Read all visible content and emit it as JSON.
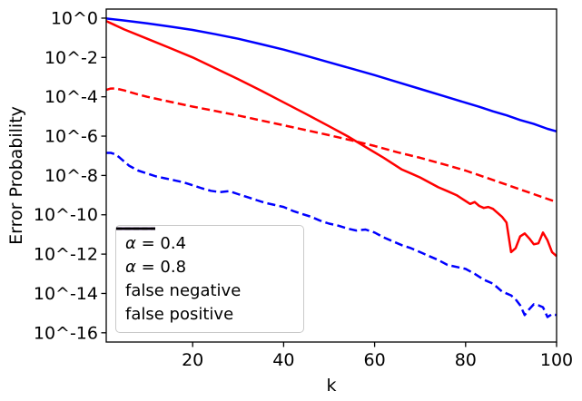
{
  "chart_data": {
    "type": "line",
    "title": "",
    "xlabel": "k",
    "ylabel": "Error Probability",
    "grid": false,
    "xlim": [
      1,
      100
    ],
    "ylim_log10": [
      -16.47,
      0.46
    ],
    "x_ticks": [
      20,
      40,
      60,
      80,
      100
    ],
    "y_ticks": [
      {
        "value": 0,
        "label": "10^0"
      },
      {
        "value": -2,
        "label": "10^-2"
      },
      {
        "value": -4,
        "label": "10^-4"
      },
      {
        "value": -6,
        "label": "10^-6"
      },
      {
        "value": -8,
        "label": "10^-8"
      },
      {
        "value": -10,
        "label": "10^-10"
      },
      {
        "value": -12,
        "label": "10^-12"
      },
      {
        "value": -14,
        "label": "10^-14"
      },
      {
        "value": -16,
        "label": "10^-16"
      }
    ],
    "colors": {
      "alpha04": "#ff0000",
      "alpha08": "#0000ff",
      "neutral": "#000000"
    },
    "legend": {
      "position": "lower left",
      "entries": [
        {
          "label": "α = 0.4",
          "color": "#ff0000",
          "dash": "solid"
        },
        {
          "label": "α = 0.8",
          "color": "#0000ff",
          "dash": "solid"
        },
        {
          "label": "false negative",
          "color": "#000000",
          "dash": "solid"
        },
        {
          "label": "false positive",
          "color": "#000000",
          "dash": "dashed"
        }
      ]
    },
    "series": [
      {
        "id": "alpha04-false-negative",
        "name": "α = 0.4 false negative",
        "color": "#ff0000",
        "style": "solid",
        "x": [
          1,
          5,
          10,
          15,
          20,
          25,
          30,
          35,
          40,
          45,
          50,
          54,
          58,
          62,
          66,
          68,
          70,
          72,
          74,
          76,
          78,
          80,
          81,
          82,
          83,
          84,
          85,
          86,
          87,
          88,
          89,
          90,
          91,
          92,
          93,
          94,
          95,
          96,
          97,
          98,
          99,
          100
        ],
        "log10_y": [
          -0.15,
          -0.58,
          -1.05,
          -1.52,
          -2.0,
          -2.55,
          -3.1,
          -3.68,
          -4.28,
          -4.88,
          -5.5,
          -6.0,
          -6.55,
          -7.1,
          -7.7,
          -7.9,
          -8.1,
          -8.35,
          -8.6,
          -8.8,
          -9.0,
          -9.3,
          -9.45,
          -9.35,
          -9.55,
          -9.65,
          -9.6,
          -9.7,
          -9.9,
          -10.1,
          -10.4,
          -11.9,
          -11.7,
          -11.1,
          -10.95,
          -11.2,
          -11.5,
          -11.45,
          -10.9,
          -11.3,
          -11.9,
          -12.1
        ]
      },
      {
        "id": "alpha08-false-negative",
        "name": "α = 0.8 false negative",
        "color": "#0000ff",
        "style": "solid",
        "x": [
          1,
          5,
          10,
          15,
          20,
          25,
          30,
          35,
          40,
          45,
          50,
          55,
          60,
          65,
          70,
          75,
          80,
          83,
          86,
          89,
          92,
          95,
          98,
          100
        ],
        "log10_y": [
          -0.02,
          -0.12,
          -0.27,
          -0.43,
          -0.6,
          -0.82,
          -1.05,
          -1.32,
          -1.6,
          -1.92,
          -2.25,
          -2.57,
          -2.9,
          -3.25,
          -3.6,
          -3.95,
          -4.3,
          -4.51,
          -4.74,
          -4.94,
          -5.18,
          -5.38,
          -5.63,
          -5.76
        ]
      },
      {
        "id": "alpha04-false-positive",
        "name": "α = 0.4 false positive",
        "color": "#ff0000",
        "style": "dashed",
        "x": [
          1,
          2,
          3,
          5,
          8,
          10,
          15,
          20,
          25,
          30,
          35,
          40,
          45,
          50,
          55,
          60,
          65,
          70,
          75,
          80,
          85,
          90,
          95,
          100
        ],
        "log10_y": [
          -3.65,
          -3.58,
          -3.57,
          -3.68,
          -3.88,
          -4.0,
          -4.25,
          -4.5,
          -4.72,
          -4.95,
          -5.2,
          -5.45,
          -5.7,
          -5.95,
          -6.22,
          -6.5,
          -6.82,
          -7.1,
          -7.42,
          -7.75,
          -8.15,
          -8.55,
          -8.95,
          -9.35
        ]
      },
      {
        "id": "alpha08-false-positive",
        "name": "α = 0.8 false positive",
        "color": "#0000ff",
        "style": "dashed",
        "x": [
          1,
          2,
          3,
          4,
          5,
          6,
          8,
          10,
          12,
          14,
          16,
          18,
          20,
          22,
          24,
          26,
          28,
          30,
          32,
          34,
          36,
          38,
          40,
          42,
          44,
          46,
          48,
          50,
          52,
          54,
          56,
          58,
          60,
          62,
          64,
          66,
          68,
          70,
          72,
          74,
          76,
          78,
          80,
          82,
          84,
          86,
          88,
          90,
          91,
          92,
          93,
          94,
          95,
          96,
          97,
          98,
          99,
          100
        ],
        "log10_y": [
          -6.85,
          -6.85,
          -6.92,
          -7.1,
          -7.3,
          -7.5,
          -7.75,
          -7.9,
          -8.05,
          -8.15,
          -8.25,
          -8.35,
          -8.5,
          -8.65,
          -8.78,
          -8.85,
          -8.8,
          -8.95,
          -9.1,
          -9.25,
          -9.4,
          -9.5,
          -9.6,
          -9.8,
          -9.95,
          -10.1,
          -10.3,
          -10.45,
          -10.55,
          -10.7,
          -10.8,
          -10.75,
          -10.9,
          -11.15,
          -11.35,
          -11.55,
          -11.7,
          -11.9,
          -12.1,
          -12.3,
          -12.55,
          -12.65,
          -12.75,
          -13.0,
          -13.3,
          -13.5,
          -13.9,
          -14.1,
          -14.3,
          -14.6,
          -15.1,
          -14.8,
          -14.55,
          -14.6,
          -14.7,
          -15.2,
          -15.05,
          -15.1
        ]
      }
    ]
  }
}
